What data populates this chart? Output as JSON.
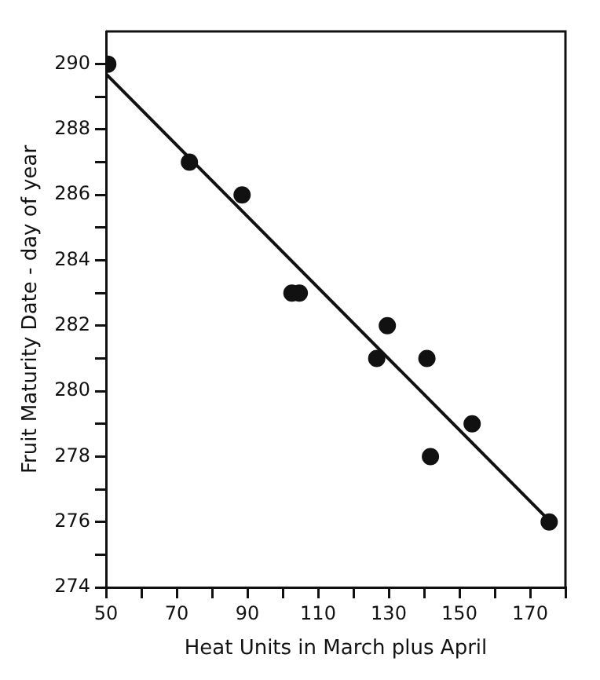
{
  "chart_data": {
    "type": "scatter",
    "xlabel": "Heat Units in March plus April",
    "ylabel": "Fruit Maturity Date - day of year",
    "xlim": [
      50,
      180
    ],
    "ylim": [
      274,
      291
    ],
    "xticks": [
      50,
      {
        "value": 60,
        "label": null
      },
      70,
      {
        "value": 80,
        "label": null
      },
      90,
      {
        "value": 100,
        "label": null
      },
      110,
      {
        "value": 120,
        "label": null
      },
      130,
      {
        "value": 140,
        "label": null
      },
      150,
      {
        "value": 160,
        "label": null
      },
      170,
      {
        "value": 180,
        "label": null
      }
    ],
    "yticks": [
      274,
      {
        "value": 275,
        "label": null
      },
      276,
      {
        "value": 277,
        "label": null
      },
      278,
      {
        "value": 279,
        "label": null
      },
      280,
      {
        "value": 281,
        "label": null
      },
      282,
      {
        "value": 283,
        "label": null
      },
      284,
      {
        "value": 285,
        "label": null
      },
      286,
      {
        "value": 287,
        "label": null
      },
      288,
      {
        "value": 289,
        "label": null
      },
      290
    ],
    "grid": false,
    "legend": false,
    "marker": "circle",
    "series": [
      {
        "color": "#111111",
        "x": [
          50.5,
          73.6,
          88.5,
          102.6,
          104.7,
          126.6,
          129.6,
          140.8,
          141.8,
          153.6,
          175.4
        ],
        "values": [
          290,
          287,
          286,
          283,
          283,
          281,
          282,
          281,
          278,
          279,
          276
        ]
      },
      {
        "type": "line",
        "color": "#111111",
        "marker": "none",
        "line_style": "solid",
        "x": [
          50,
          174.9
        ],
        "values": [
          289.7,
          276.1
        ]
      }
    ]
  }
}
